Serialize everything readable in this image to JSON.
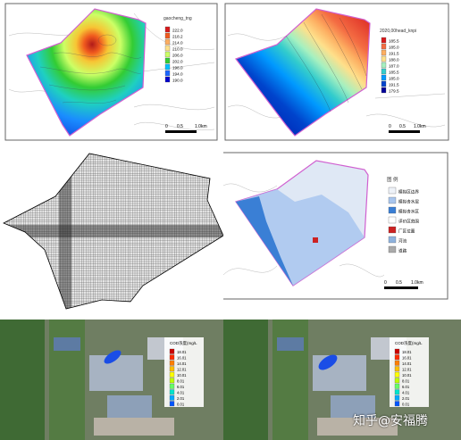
{
  "panel_a": {
    "legend_title": "gaocheng_tng",
    "legend_values": [
      "222.0",
      "218.2",
      "214.0",
      "210.0",
      "206.0",
      "202.0",
      "198.0",
      "194.0",
      "190.0"
    ],
    "legend_colors": [
      "#d7191c",
      "#f05a1e",
      "#fdae61",
      "#fee08b",
      "#ccff66",
      "#33cc33",
      "#00bfff",
      "#1a66ff",
      "#0000cc"
    ],
    "scale": [
      "0",
      "0.5",
      "1.0km"
    ]
  },
  "panel_b": {
    "legend_title": "2020,00head_knpi",
    "legend_values": [
      "185.5",
      "185.0",
      "191.5",
      "188.0",
      "187.0",
      "185.5",
      "185.0",
      "191.5",
      "179.5"
    ],
    "legend_colors": [
      "#d7191c",
      "#f46d43",
      "#fdae61",
      "#fee08b",
      "#a6f0c0",
      "#33cccc",
      "#0099ff",
      "#0044cc",
      "#000099"
    ],
    "scale": [
      "0",
      "0.5",
      "1.0km"
    ]
  },
  "panel_d": {
    "legend_title": "图 例",
    "legend_items": [
      "模拟区边界",
      "模拟含水层",
      "模拟含水区",
      "评价区范围",
      "厂区位置",
      "河流",
      "道路"
    ],
    "legend_colors": [
      "#eef2f8",
      "#a9c6ee",
      "#3a7fd5",
      "#ffffff",
      "#cc2222",
      "#8fb3de",
      "#aaaaaa"
    ],
    "scale": [
      "0",
      "0.5",
      "1.0km"
    ]
  },
  "panel_e": {
    "legend_title": "COD浓度(mg/L",
    "legend_values": [
      "18.01",
      "16.01",
      "14.01",
      "12.01",
      "10.01",
      "8.01",
      "6.01",
      "4.01",
      "2.01",
      "0.01"
    ],
    "legend_colors": [
      "#cc0000",
      "#ff2a00",
      "#ff7f00",
      "#ffbf00",
      "#ffff00",
      "#bfff00",
      "#66ff66",
      "#00e5cc",
      "#00aaff",
      "#0055ff"
    ]
  },
  "panel_f": {
    "legend_title": "COD浓度(mg/L",
    "legend_values": [
      "18.01",
      "16.01",
      "14.01",
      "12.01",
      "10.01",
      "8.01",
      "6.01",
      "4.01",
      "2.01",
      "0.01"
    ],
    "legend_colors": [
      "#cc0000",
      "#ff2a00",
      "#ff7f00",
      "#ffbf00",
      "#ffff00",
      "#bfff00",
      "#66ff66",
      "#00e5cc",
      "#00aaff",
      "#0055ff"
    ]
  },
  "watermark": "知乎@安福腾"
}
